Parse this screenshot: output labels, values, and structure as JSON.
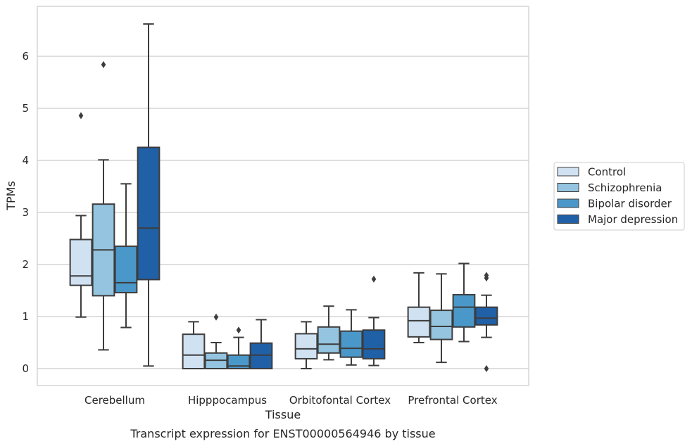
{
  "chart_data": {
    "type": "box",
    "title": "",
    "caption": "Transcript expression for ENST00000564946 by tissue",
    "xlabel": "Tissue",
    "ylabel": "TPMs",
    "ylim": [
      -0.32,
      6.95
    ],
    "yticks": [
      0,
      1,
      2,
      3,
      4,
      5,
      6
    ],
    "grid": "horizontal",
    "legend_position": "right",
    "categories": [
      "Cerebellum",
      "Hipppocampus",
      "Orbitofontal Cortex",
      "Prefrontal Cortex"
    ],
    "series": [
      {
        "name": "Control",
        "color": "#d0e1f2",
        "boxes": [
          {
            "whislo": 0.99,
            "q1": 1.6,
            "med": 1.78,
            "q3": 2.48,
            "whishi": 2.94,
            "fliers": [
              4.86
            ]
          },
          {
            "whislo": 0.0,
            "q1": 0.0,
            "med": 0.26,
            "q3": 0.66,
            "whishi": 0.9,
            "fliers": []
          },
          {
            "whislo": 0.0,
            "q1": 0.19,
            "med": 0.38,
            "q3": 0.67,
            "whishi": 0.9,
            "fliers": []
          },
          {
            "whislo": 0.5,
            "q1": 0.61,
            "med": 0.92,
            "q3": 1.18,
            "whishi": 1.84,
            "fliers": []
          }
        ]
      },
      {
        "name": "Schizophrenia",
        "color": "#94c4df",
        "boxes": [
          {
            "whislo": 0.36,
            "q1": 1.4,
            "med": 2.28,
            "q3": 3.16,
            "whishi": 4.01,
            "fliers": [
              5.84
            ]
          },
          {
            "whislo": 0.0,
            "q1": 0.0,
            "med": 0.16,
            "q3": 0.3,
            "whishi": 0.5,
            "fliers": [
              0.99
            ]
          },
          {
            "whislo": 0.17,
            "q1": 0.3,
            "med": 0.47,
            "q3": 0.8,
            "whishi": 1.2,
            "fliers": []
          },
          {
            "whislo": 0.12,
            "q1": 0.56,
            "med": 0.81,
            "q3": 1.12,
            "whishi": 1.82,
            "fliers": []
          }
        ]
      },
      {
        "name": "Bipolar disorder",
        "color": "#4a98c9",
        "boxes": [
          {
            "whislo": 0.79,
            "q1": 1.46,
            "med": 1.65,
            "q3": 2.35,
            "whishi": 3.55,
            "fliers": []
          },
          {
            "whislo": 0.0,
            "q1": 0.0,
            "med": 0.05,
            "q3": 0.26,
            "whishi": 0.6,
            "fliers": [
              0.74
            ]
          },
          {
            "whislo": 0.07,
            "q1": 0.22,
            "med": 0.39,
            "q3": 0.72,
            "whishi": 1.13,
            "fliers": []
          },
          {
            "whislo": 0.52,
            "q1": 0.8,
            "med": 1.18,
            "q3": 1.42,
            "whishi": 2.02,
            "fliers": []
          }
        ]
      },
      {
        "name": "Major depression",
        "color": "#2060a7",
        "boxes": [
          {
            "whislo": 0.05,
            "q1": 1.71,
            "med": 2.7,
            "q3": 4.25,
            "whishi": 6.62,
            "fliers": []
          },
          {
            "whislo": 0.0,
            "q1": 0.0,
            "med": 0.26,
            "q3": 0.49,
            "whishi": 0.94,
            "fliers": []
          },
          {
            "whislo": 0.06,
            "q1": 0.19,
            "med": 0.38,
            "q3": 0.74,
            "whishi": 0.98,
            "fliers": [
              1.72
            ]
          },
          {
            "whislo": 0.6,
            "q1": 0.84,
            "med": 0.97,
            "q3": 1.18,
            "whishi": 1.41,
            "fliers": [
              1.74,
              1.79,
              0.0
            ]
          }
        ]
      }
    ]
  }
}
